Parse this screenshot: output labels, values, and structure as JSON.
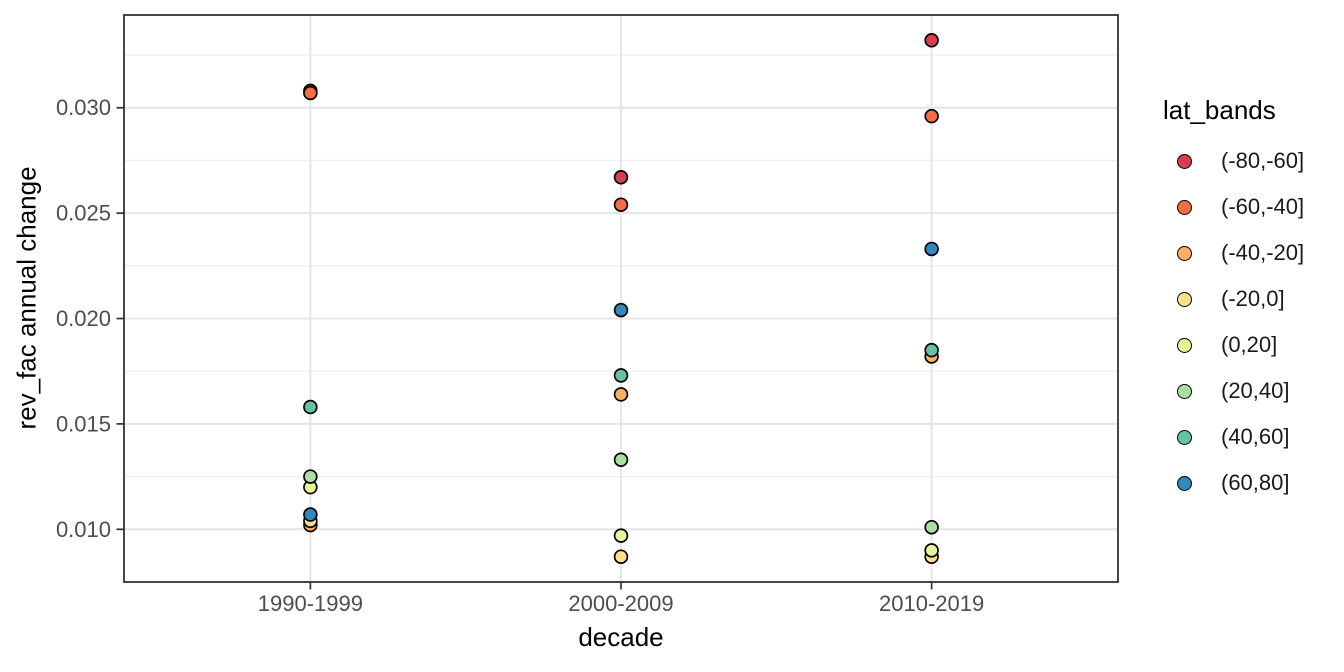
{
  "chart_data": {
    "type": "scatter",
    "title": "",
    "xlabel": "decade",
    "ylabel": "rev_fac annual change",
    "categories": [
      "1990-1999",
      "2000-2009",
      "2010-2019"
    ],
    "y_ticks": [
      0.01,
      0.015,
      0.02,
      0.025,
      0.03
    ],
    "y_tick_labels": [
      "0.010",
      "0.015",
      "0.020",
      "0.025",
      "0.030"
    ],
    "y_minor_ticks": [
      0.0125,
      0.0175,
      0.0225,
      0.0275,
      0.0325
    ],
    "ylim": [
      0.0075,
      0.0344
    ],
    "grid": "horizontal major+minor gridlines; vertical major gridline at each category; white panel with dark border",
    "legend": {
      "title": "lat_bands",
      "position": "right"
    },
    "series": [
      {
        "name": "(-80,-60]",
        "color": "#d53e4f",
        "values": [
          0.0308,
          0.0267,
          0.0332
        ]
      },
      {
        "name": "(-60,-40]",
        "color": "#f46d43",
        "values": [
          0.0307,
          0.0254,
          0.0296
        ]
      },
      {
        "name": "(-40,-20]",
        "color": "#fdae61",
        "values": [
          0.0102,
          0.0164,
          0.0182
        ]
      },
      {
        "name": "(-20,0]",
        "color": "#fee08b",
        "values": [
          0.0104,
          0.0087,
          0.0087
        ]
      },
      {
        "name": "(0,20]",
        "color": "#e6f598",
        "values": [
          0.012,
          0.0097,
          0.009
        ]
      },
      {
        "name": "(20,40]",
        "color": "#abdda4",
        "values": [
          0.0125,
          0.0133,
          0.0101
        ]
      },
      {
        "name": "(40,60]",
        "color": "#66c2a5",
        "values": [
          0.0158,
          0.0173,
          0.0185
        ]
      },
      {
        "name": "(60,80]",
        "color": "#3288bd",
        "values": [
          0.0107,
          0.0204,
          0.0233
        ]
      }
    ],
    "style": {
      "point_stroke": "#000000",
      "grid_major": "#e5e5e5",
      "grid_minor": "#f0f0f0",
      "panel_border": "#333333",
      "tick_color": "#333333",
      "tick_label_color": "#4d4d4d",
      "axis_title_color": "#000000",
      "background": "#ffffff"
    }
  }
}
